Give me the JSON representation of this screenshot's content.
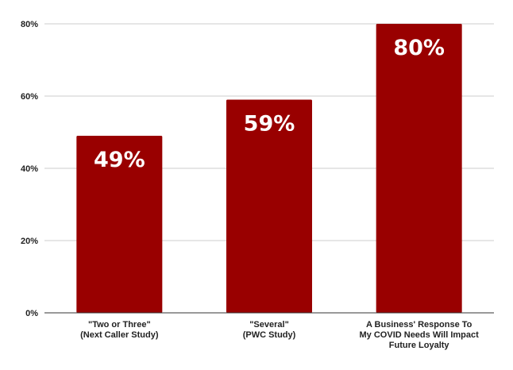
{
  "chart_data": {
    "type": "bar",
    "categories": [
      [
        "\"Two or Three\"",
        "(Next Caller Study)"
      ],
      [
        "\"Several\"",
        "(PWC Study)"
      ],
      [
        "A Business' Response To",
        "My COVID Needs Will Impact",
        "Future Loyalty"
      ]
    ],
    "values": [
      49,
      59,
      80
    ],
    "data_labels": [
      "49%",
      "59%",
      "80%"
    ],
    "ylim": [
      0,
      80
    ],
    "yticks": [
      0,
      20,
      40,
      60,
      80
    ],
    "ytick_labels": [
      "0%",
      "20%",
      "40%",
      "60%",
      "80%"
    ],
    "grid": true,
    "bar_color": "#990000",
    "grid_color": "#cccccc",
    "title": "",
    "xlabel": "",
    "ylabel": ""
  }
}
